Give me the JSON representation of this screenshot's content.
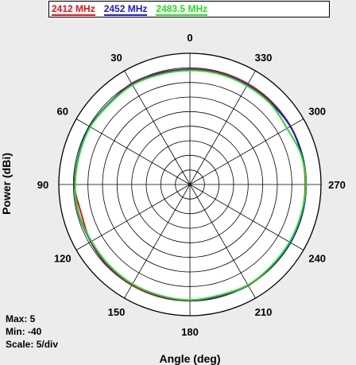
{
  "chart_data": {
    "type": "polar-line",
    "title": "",
    "xlabel": "Angle (deg)",
    "ylabel": "Power (dBi)",
    "radial_range": [
      -40,
      5
    ],
    "radial_step": 5,
    "angle_ticks": [
      {
        "angle": 0,
        "label": "0"
      },
      {
        "angle": 30,
        "label": "30"
      },
      {
        "angle": 60,
        "label": "60"
      },
      {
        "angle": 90,
        "label": "90"
      },
      {
        "angle": 120,
        "label": "120"
      },
      {
        "angle": 150,
        "label": "150"
      },
      {
        "angle": 180,
        "label": "180"
      },
      {
        "angle": 210,
        "label": "210"
      },
      {
        "angle": 240,
        "label": "240"
      },
      {
        "angle": 270,
        "label": "270"
      },
      {
        "angle": 300,
        "label": "300"
      },
      {
        "angle": 330,
        "label": "330"
      }
    ],
    "angle_direction": "counterclockwise from top",
    "grid": true,
    "legend_position": "top",
    "angles": [
      0,
      15,
      30,
      45,
      60,
      75,
      90,
      105,
      120,
      135,
      150,
      165,
      180,
      195,
      210,
      225,
      240,
      255,
      270,
      285,
      300,
      315,
      330,
      345
    ],
    "series": [
      {
        "name": "2412 MHz",
        "color": "#e8101a",
        "values": [
          -0.5,
          -0.4,
          0.0,
          -0.8,
          -0.4,
          -0.6,
          -0.4,
          -1.4,
          -0.7,
          -0.3,
          -0.2,
          -0.1,
          -0.2,
          -0.4,
          0.0,
          -0.4,
          -0.3,
          -0.4,
          -0.4,
          -0.3,
          -0.1,
          -0.3,
          -0.2,
          -0.3
        ]
      },
      {
        "name": "2452 MHz",
        "color": "#1a1ad0",
        "values": [
          -0.7,
          -0.6,
          -0.3,
          -0.7,
          -0.3,
          -0.5,
          -0.5,
          -0.5,
          -0.8,
          -0.6,
          -0.5,
          -0.4,
          -0.3,
          -0.5,
          -0.1,
          -0.4,
          -0.2,
          -0.3,
          -0.1,
          -0.3,
          -0.2,
          -0.6,
          -0.6,
          -0.6
        ]
      },
      {
        "name": "2483.5 MHz",
        "color": "#22dd22",
        "values": [
          -0.9,
          -0.9,
          -0.6,
          -0.9,
          -0.5,
          -0.7,
          -0.6,
          -0.6,
          -1.0,
          -0.8,
          -0.6,
          -0.6,
          -0.4,
          -0.7,
          -0.2,
          -0.5,
          -0.5,
          -0.5,
          -0.2,
          -0.5,
          -1.5,
          -0.9,
          -0.9,
          -0.8
        ]
      }
    ]
  },
  "stats": {
    "max_label": "Max: 5",
    "min_label": "Min: -40",
    "scale_label": "Scale: 5/div"
  }
}
